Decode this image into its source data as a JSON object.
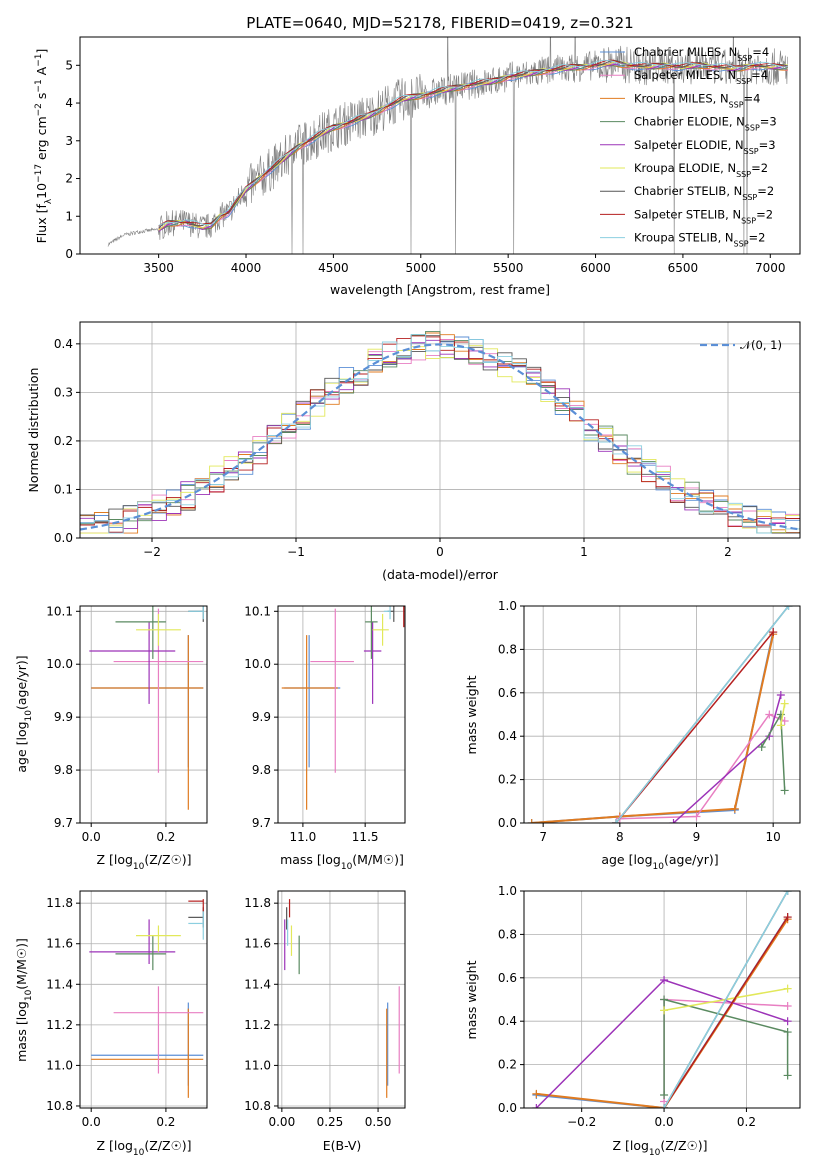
{
  "chart_data": [
    {
      "id": "spectrum",
      "type": "line",
      "title": "PLATE=0640, MJD=52178, FIBERID=0419, z=0.321",
      "xlabel": "wavelength [Angstrom, rest frame]",
      "ylabel": "Flux [f_λ 10^-17 erg cm^-2 s^-1 A^-1]",
      "xlim": [
        3050,
        7170
      ],
      "ylim": [
        0,
        5.75
      ],
      "xticks": [
        3500,
        4000,
        4500,
        5000,
        5500,
        6000,
        6500,
        7000
      ],
      "yticks": [
        0,
        1,
        2,
        3,
        4,
        5
      ],
      "legend_position": "top-right",
      "data_wavelength_range": [
        3210,
        7100
      ],
      "model_continuum": {
        "x": [
          3210,
          3300,
          3400,
          3500,
          3550,
          3650,
          3750,
          3800,
          3850,
          3900,
          3950,
          4000,
          4100,
          4200,
          4300,
          4400,
          4500,
          4600,
          4700,
          4800,
          4900,
          5000,
          5100,
          5200,
          5300,
          5400,
          5500,
          5600,
          5700,
          5800,
          5900,
          6000,
          6100,
          6200,
          6300,
          6400,
          6500,
          6600,
          6700,
          6800,
          6900,
          7000,
          7100
        ],
        "y": [
          0.25,
          0.5,
          0.6,
          0.65,
          0.8,
          0.85,
          0.7,
          0.75,
          1.0,
          1.1,
          1.4,
          1.7,
          2.1,
          2.45,
          2.85,
          3.1,
          3.35,
          3.5,
          3.65,
          3.9,
          4.1,
          4.2,
          4.3,
          4.4,
          4.5,
          4.55,
          4.7,
          4.75,
          4.85,
          4.9,
          4.95,
          5.0,
          5.05,
          5.0,
          4.95,
          5.0,
          4.95,
          5.0,
          4.95,
          4.9,
          5.0,
          4.95,
          4.95
        ]
      },
      "series": [
        {
          "name": "Chabrier MILES, N_SSP=4",
          "color": "#5b8fd6"
        },
        {
          "name": "Salpeter MILES, N_SSP=4",
          "color": "#e87fc2"
        },
        {
          "name": "Kroupa MILES, N_SSP=4",
          "color": "#e07b20"
        },
        {
          "name": "Chabrier ELODIE, N_SSP=3",
          "color": "#5a8a60"
        },
        {
          "name": "Salpeter ELODIE, N_SSP=3",
          "color": "#9c33b8"
        },
        {
          "name": "Kroupa ELODIE, N_SSP=2",
          "color": "#e2e85a"
        },
        {
          "name": "Chabrier STELIB, N_SSP=2",
          "color": "#555555"
        },
        {
          "name": "Salpeter STELIB, N_SSP=2",
          "color": "#b51f1f"
        },
        {
          "name": "Kroupa STELIB, N_SSP=2",
          "color": "#8ccfe0"
        }
      ]
    },
    {
      "id": "residuals",
      "type": "histogram",
      "xlabel": "(data-model)/error",
      "ylabel": "Normed distribution",
      "xlim": [
        -2.5,
        2.5
      ],
      "ylim": [
        0,
        0.445
      ],
      "xticks": [
        -2,
        -1,
        0,
        1,
        2
      ],
      "yticks": [
        0.0,
        0.1,
        0.2,
        0.3,
        0.4
      ],
      "grid": true,
      "legend": "𝒩(0, 1)",
      "legend_position": "top-right",
      "gaussian": {
        "mean": 0,
        "sigma": 1,
        "color": "#5b8fd6",
        "style": "dashed"
      }
    },
    {
      "id": "age-vs-Z",
      "type": "scatter",
      "xlabel": "Z [log10(Z/Z☉)]",
      "ylabel": "age  [log10(age/yr)]",
      "xlim": [
        -0.03,
        0.31
      ],
      "ylim": [
        9.7,
        10.11
      ],
      "xticks": [
        0.0,
        0.2
      ],
      "yticks": [
        9.7,
        9.8,
        9.9,
        10.0,
        10.1
      ],
      "grid": true,
      "points": [
        {
          "x": 0.26,
          "y": 9.955,
          "xerr": [
            0.26,
            0.04
          ],
          "yerr": [
            0.15,
            0.1
          ],
          "color": "#5b8fd6"
        },
        {
          "x": 0.26,
          "y": 9.955,
          "xerr": [
            0.26,
            0.04
          ],
          "yerr": [
            0.23,
            0.1
          ],
          "color": "#e07b20"
        },
        {
          "x": 0.18,
          "y": 10.005,
          "xerr": [
            0.12,
            0.12
          ],
          "yerr": [
            0.21,
            0.1
          ],
          "color": "#e87fc2"
        },
        {
          "x": 0.155,
          "y": 10.025,
          "xerr": [
            0.16,
            0.07
          ],
          "yerr": [
            0.1,
            0.055
          ],
          "color": "#9c33b8"
        },
        {
          "x": 0.165,
          "y": 10.08,
          "xerr": [
            0.1,
            0.035
          ],
          "yerr": [
            0.07,
            0.03
          ],
          "color": "#5a8a60"
        },
        {
          "x": 0.18,
          "y": 10.065,
          "xerr": [
            0.06,
            0.06
          ],
          "yerr": [
            0.03,
            0.03
          ],
          "color": "#e2e85a"
        },
        {
          "x": 0.3,
          "y": 10.1,
          "xerr": [
            0.04,
            0.0
          ],
          "yerr": [
            0.02,
            0.02
          ],
          "color": "#555555"
        },
        {
          "x": 0.3,
          "y": 10.1,
          "xerr": [
            0.04,
            0.0
          ],
          "yerr": [
            0.015,
            0.015
          ],
          "color": "#8ccfe0"
        }
      ]
    },
    {
      "id": "age-vs-mass",
      "type": "scatter",
      "xlabel": "mass [log10(M/M☉)]",
      "ylabel": "",
      "xlim": [
        10.8,
        11.82
      ],
      "ylim": [
        9.7,
        10.11
      ],
      "xticks": [
        11.0,
        11.5
      ],
      "yticks": [
        9.7,
        9.8,
        9.9,
        10.0,
        10.1
      ],
      "grid": true,
      "points": [
        {
          "x": 11.05,
          "y": 9.955,
          "xerr": [
            0.2,
            0.25
          ],
          "yerr": [
            0.15,
            0.1
          ],
          "color": "#5b8fd6"
        },
        {
          "x": 11.03,
          "y": 9.955,
          "xerr": [
            0.2,
            0.25
          ],
          "yerr": [
            0.23,
            0.1
          ],
          "color": "#e07b20"
        },
        {
          "x": 11.26,
          "y": 10.005,
          "xerr": [
            0.2,
            0.15
          ],
          "yerr": [
            0.21,
            0.1
          ],
          "color": "#e87fc2"
        },
        {
          "x": 11.56,
          "y": 10.025,
          "xerr": [
            0.07,
            0.07
          ],
          "yerr": [
            0.1,
            0.055
          ],
          "color": "#9c33b8"
        },
        {
          "x": 11.55,
          "y": 10.08,
          "xerr": [
            0.05,
            0.05
          ],
          "yerr": [
            0.07,
            0.03
          ],
          "color": "#5a8a60"
        },
        {
          "x": 11.64,
          "y": 10.065,
          "xerr": [
            0.08,
            0.05
          ],
          "yerr": [
            0.03,
            0.03
          ],
          "color": "#e2e85a"
        },
        {
          "x": 11.73,
          "y": 10.1,
          "xerr": [
            0.05,
            0.0
          ],
          "yerr": [
            0.02,
            0.02
          ],
          "color": "#555555"
        },
        {
          "x": 11.7,
          "y": 10.1,
          "xerr": [
            0.05,
            0.0
          ],
          "yerr": [
            0.015,
            0.015
          ],
          "color": "#8ccfe0"
        },
        {
          "x": 11.81,
          "y": 10.1,
          "xerr": [
            0.0,
            0.0
          ],
          "yerr": [
            0.03,
            0.01
          ],
          "color": "#b51f1f"
        }
      ]
    },
    {
      "id": "weight-vs-age",
      "type": "line",
      "xlabel": "age  [log10(age/yr)]",
      "ylabel": "mass weight",
      "xlim": [
        6.75,
        10.35
      ],
      "ylim": [
        0,
        1.0
      ],
      "xticks": [
        7,
        8,
        9,
        10
      ],
      "yticks": [
        0.0,
        0.2,
        0.4,
        0.6,
        0.8,
        1.0
      ],
      "grid": true,
      "series": [
        {
          "color": "#5b8fd6",
          "x": [
            6.85,
            8.0,
            9.5,
            10.0
          ],
          "y": [
            0.0,
            0.03,
            0.06,
            0.88
          ]
        },
        {
          "color": "#e07b20",
          "x": [
            6.85,
            8.0,
            9.5,
            10.0
          ],
          "y": [
            0.0,
            0.03,
            0.065,
            0.87
          ]
        },
        {
          "color": "#e87fc2",
          "x": [
            8.0,
            9.0,
            9.95,
            10.15
          ],
          "y": [
            0.02,
            0.03,
            0.5,
            0.47
          ]
        },
        {
          "color": "#9c33b8",
          "x": [
            8.7,
            9.95,
            10.1
          ],
          "y": [
            0.0,
            0.4,
            0.59
          ]
        },
        {
          "color": "#5a8a60",
          "x": [
            9.85,
            10.1,
            10.15
          ],
          "y": [
            0.35,
            0.5,
            0.15
          ]
        },
        {
          "color": "#e2e85a",
          "x": [
            10.1,
            10.15
          ],
          "y": [
            0.45,
            0.55
          ]
        },
        {
          "color": "#555555",
          "x": [
            7.95,
            10.2
          ],
          "y": [
            0.0,
            1.0
          ]
        },
        {
          "color": "#b51f1f",
          "x": [
            7.95,
            10.0
          ],
          "y": [
            0.0,
            0.88
          ]
        },
        {
          "color": "#8ccfe0",
          "x": [
            7.95,
            10.2
          ],
          "y": [
            0.0,
            1.0
          ]
        }
      ]
    },
    {
      "id": "mass-vs-Z",
      "type": "scatter",
      "xlabel": "Z [log10(Z/Z☉)]",
      "ylabel": "mass [log10(M/M☉)]",
      "xlim": [
        -0.03,
        0.31
      ],
      "ylim": [
        10.79,
        11.86
      ],
      "xticks": [
        0.0,
        0.2
      ],
      "yticks": [
        10.8,
        11.0,
        11.2,
        11.4,
        11.6,
        11.8
      ],
      "grid": true,
      "points": [
        {
          "x": 0.26,
          "y": 11.05,
          "xerr": [
            0.26,
            0.04
          ],
          "yerr": [
            0.15,
            0.26
          ],
          "color": "#5b8fd6"
        },
        {
          "x": 0.26,
          "y": 11.03,
          "xerr": [
            0.26,
            0.04
          ],
          "yerr": [
            0.19,
            0.25
          ],
          "color": "#e07b20"
        },
        {
          "x": 0.18,
          "y": 11.26,
          "xerr": [
            0.12,
            0.12
          ],
          "yerr": [
            0.3,
            0.13
          ],
          "color": "#e87fc2"
        },
        {
          "x": 0.155,
          "y": 11.56,
          "xerr": [
            0.16,
            0.07
          ],
          "yerr": [
            0.06,
            0.16
          ],
          "color": "#9c33b8"
        },
        {
          "x": 0.165,
          "y": 11.55,
          "xerr": [
            0.1,
            0.035
          ],
          "yerr": [
            0.08,
            0.09
          ],
          "color": "#5a8a60"
        },
        {
          "x": 0.18,
          "y": 11.64,
          "xerr": [
            0.06,
            0.06
          ],
          "yerr": [
            0.08,
            0.05
          ],
          "color": "#e2e85a"
        },
        {
          "x": 0.3,
          "y": 11.73,
          "xerr": [
            0.04,
            0.0
          ],
          "yerr": [
            0.05,
            0.05
          ],
          "color": "#555555"
        },
        {
          "x": 0.3,
          "y": 11.7,
          "xerr": [
            0.04,
            0.0
          ],
          "yerr": [
            0.08,
            0.06
          ],
          "color": "#8ccfe0"
        },
        {
          "x": 0.3,
          "y": 11.81,
          "xerr": [
            0.04,
            0.0
          ],
          "yerr": [
            0.05,
            0.01
          ],
          "color": "#b51f1f"
        }
      ]
    },
    {
      "id": "mass-vs-ebv",
      "type": "scatter",
      "xlabel": "E(B-V)",
      "ylabel": "",
      "xlim": [
        -0.02,
        0.64
      ],
      "ylim": [
        10.79,
        11.86
      ],
      "xticks": [
        0.0,
        0.25,
        0.5
      ],
      "yticks": [
        10.8,
        11.0,
        11.2,
        11.4,
        11.6,
        11.8
      ],
      "grid": true,
      "points": [
        {
          "x": 0.55,
          "y": 11.05,
          "yerr": [
            0.15,
            0.26
          ],
          "color": "#5b8fd6"
        },
        {
          "x": 0.545,
          "y": 11.03,
          "yerr": [
            0.19,
            0.25
          ],
          "color": "#e07b20"
        },
        {
          "x": 0.61,
          "y": 11.26,
          "yerr": [
            0.3,
            0.13
          ],
          "color": "#e87fc2"
        },
        {
          "x": 0.015,
          "y": 11.56,
          "yerr": [
            0.09,
            0.16
          ],
          "color": "#9c33b8"
        },
        {
          "x": 0.09,
          "y": 11.55,
          "yerr": [
            0.1,
            0.09
          ],
          "color": "#5a8a60"
        },
        {
          "x": 0.05,
          "y": 11.64,
          "yerr": [
            0.1,
            0.05
          ],
          "color": "#e2e85a"
        },
        {
          "x": 0.025,
          "y": 11.73,
          "yerr": [
            0.06,
            0.05
          ],
          "color": "#555555"
        },
        {
          "x": 0.03,
          "y": 11.66,
          "yerr": [
            0.07,
            0.06
          ],
          "color": "#8ccfe0"
        },
        {
          "x": 0.04,
          "y": 11.77,
          "yerr": [
            0.04,
            0.05
          ],
          "color": "#b51f1f"
        }
      ]
    },
    {
      "id": "weight-vs-Z",
      "type": "line",
      "xlabel": "Z [log10(Z/Z☉)]",
      "ylabel": "mass weight",
      "xlim": [
        -0.34,
        0.33
      ],
      "ylim": [
        0,
        1.0
      ],
      "xticks": [
        -0.2,
        0.0,
        0.2
      ],
      "yticks": [
        0.0,
        0.2,
        0.4,
        0.6,
        0.8,
        1.0
      ],
      "grid": true,
      "series": [
        {
          "color": "#5b8fd6",
          "x": [
            -0.31,
            0.0,
            0.3
          ],
          "y": [
            0.06,
            0.0,
            0.88
          ]
        },
        {
          "color": "#e07b20",
          "x": [
            -0.31,
            0.0,
            0.3
          ],
          "y": [
            0.065,
            0.0,
            0.87
          ]
        },
        {
          "color": "#e87fc2",
          "x": [
            0.0,
            0.0,
            0.3
          ],
          "y": [
            0.03,
            0.5,
            0.47
          ]
        },
        {
          "color": "#9c33b8",
          "x": [
            -0.31,
            0.0,
            0.3
          ],
          "y": [
            0.0,
            0.59,
            0.4
          ]
        },
        {
          "color": "#5a8a60",
          "x": [
            0.0,
            0.0,
            0.3,
            0.3
          ],
          "y": [
            0.06,
            0.5,
            0.35,
            0.15
          ]
        },
        {
          "color": "#e2e85a",
          "x": [
            0.0,
            0.3
          ],
          "y": [
            0.45,
            0.55
          ]
        },
        {
          "color": "#555555",
          "x": [
            0.0,
            0.3
          ],
          "y": [
            0.0,
            1.0
          ]
        },
        {
          "color": "#b51f1f",
          "x": [
            0.0,
            0.3
          ],
          "y": [
            0.0,
            0.88
          ]
        },
        {
          "color": "#8ccfe0",
          "x": [
            0.0,
            0.3
          ],
          "y": [
            0.0,
            1.0
          ]
        }
      ]
    }
  ]
}
